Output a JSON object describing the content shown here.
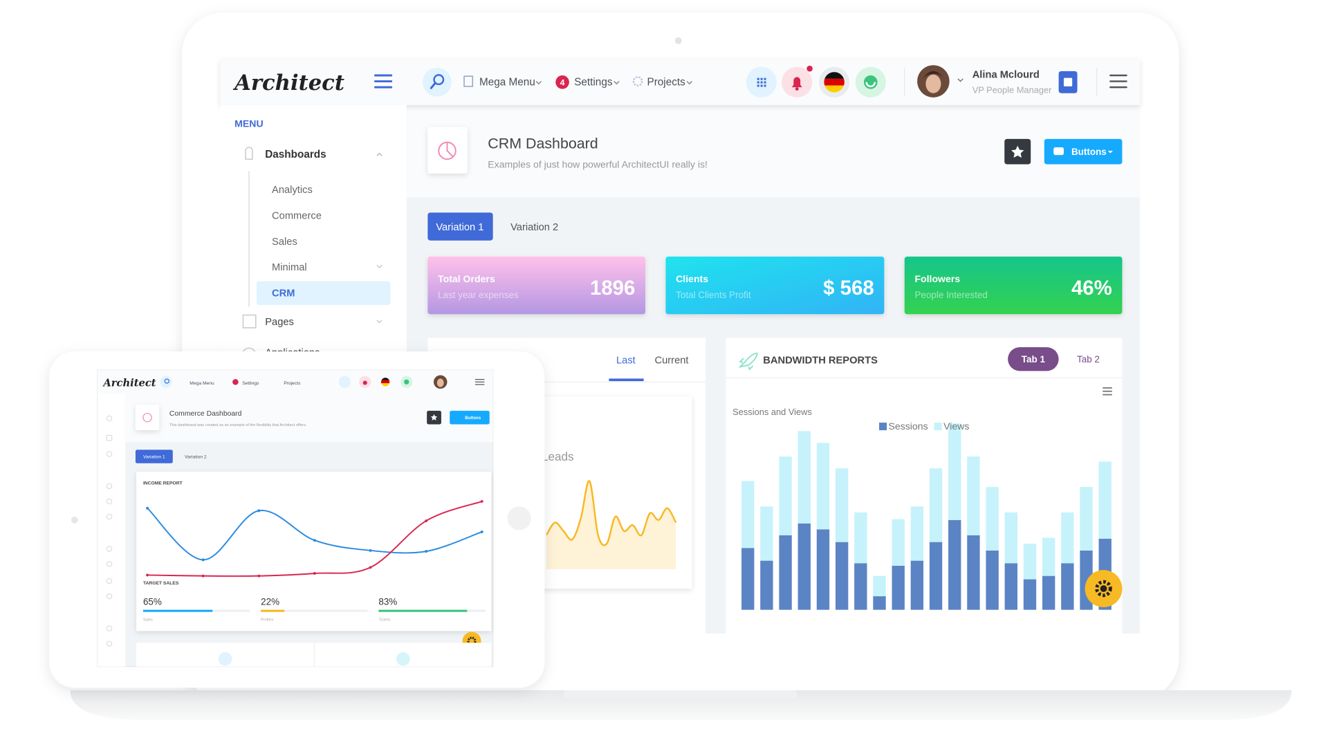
{
  "header": {
    "logo": "Architect",
    "nav": [
      {
        "label": "Mega Menu"
      },
      {
        "label": "Settings",
        "badge": "4"
      },
      {
        "label": "Projects"
      }
    ],
    "user": {
      "name": "Alina Mclourd",
      "role": "VP People Manager"
    }
  },
  "sidebar": {
    "heading": "MENU",
    "groups": [
      {
        "label": "Dashboards",
        "items": [
          "Analytics",
          "Commerce",
          "Sales",
          "Minimal",
          "CRM"
        ]
      },
      {
        "label": "Pages"
      },
      {
        "label": "Applications"
      }
    ],
    "active_item": 4
  },
  "page_title": {
    "title": "CRM Dashboard",
    "subtitle": "Examples of just how powerful ArchitectUI really is!",
    "button": "Buttons"
  },
  "tabs": [
    "Variation 1",
    "Variation 2"
  ],
  "stat_cards": [
    {
      "title": "Total Orders",
      "subtitle": "Last year expenses",
      "value": "1896"
    },
    {
      "title": "Clients",
      "subtitle": "Total Clients Profit",
      "value": "$ 568"
    },
    {
      "title": "Followers",
      "subtitle": "People Interested",
      "value": "46%"
    }
  ],
  "leads": {
    "tabs": [
      "Last",
      "Current"
    ],
    "label": "Total Leads",
    "chart": {
      "type": "area",
      "color": "#f7b924",
      "values": [
        40,
        55,
        45,
        35,
        60,
        104,
        40,
        30,
        62,
        45,
        52,
        40,
        66,
        58,
        72,
        55
      ],
      "ylim": [
        0,
        120
      ]
    }
  },
  "bandwidth": {
    "title": "BANDWIDTH REPORTS",
    "tabs": [
      "Tab 1",
      "Tab 2"
    ],
    "chart": {
      "type": "bar",
      "stacked": true,
      "title": "Sessions and Views",
      "ylim": [
        0,
        250
      ],
      "series": [
        {
          "name": "Sessions",
          "color": "#5b84c4",
          "values": [
            73,
            58,
            88,
            102,
            95,
            80,
            55,
            16,
            52,
            58,
            80,
            106,
            88,
            70,
            55,
            36,
            40,
            55,
            70,
            84
          ]
        },
        {
          "name": "Views",
          "color": "#c6f2fb",
          "values": [
            79,
            64,
            93,
            109,
            102,
            87,
            60,
            24,
            55,
            64,
            87,
            114,
            93,
            75,
            60,
            42,
            45,
            60,
            75,
            91
          ]
        }
      ]
    }
  },
  "tablet": {
    "header": {
      "logo": "Architect",
      "nav": [
        "Mega Menu",
        "Settings",
        "Projects"
      ]
    },
    "page_title": {
      "title": "Commerce Dashboard",
      "subtitle": "This dashboard was created as an example of the flexibility that Architect offers.",
      "button": "Buttons"
    },
    "tabs": [
      "Variation 1",
      "Variation 2"
    ],
    "income_report": {
      "title": "INCOME REPORT",
      "chart": {
        "type": "line",
        "ylim": [
          0,
          100
        ],
        "series": [
          {
            "color": "#2b8ae0",
            "values": [
              90,
              29,
              87,
              52,
              40,
              39,
              62
            ]
          },
          {
            "color": "#d92550",
            "values": [
              11,
              10,
              10,
              13,
              20,
              75,
              98
            ]
          }
        ]
      }
    },
    "target_sales": {
      "title": "TARGET SALES",
      "labels": [
        "Sales",
        "Profiles",
        "Tickets"
      ],
      "values": [
        65,
        22,
        83
      ],
      "value_labels": [
        "65%",
        "22%",
        "83%"
      ],
      "colors": [
        "#16aaff",
        "#f7b924",
        "#3ac47d"
      ],
      "xlim": [
        0,
        100
      ]
    }
  }
}
